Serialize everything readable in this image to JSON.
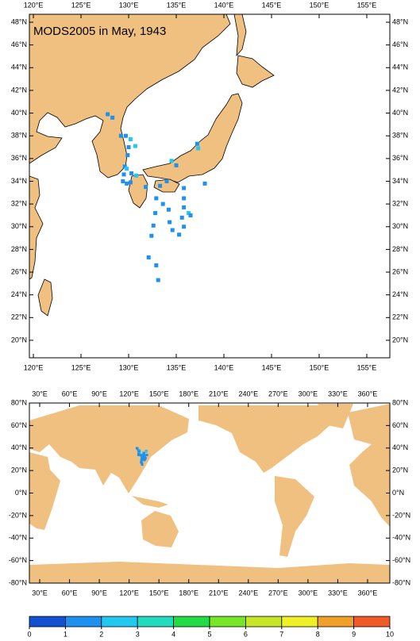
{
  "title": "MODS2005 in May, 1943",
  "maps": [
    {
      "xlim": [
        119.58,
        157.42
      ],
      "ylim": [
        18.46,
        48.7
      ],
      "xticks": [
        {
          "value": 120,
          "label": "120°E"
        },
        {
          "value": 125,
          "label": "125°E"
        },
        {
          "value": 130,
          "label": "130°E"
        },
        {
          "value": 135,
          "label": "135°E"
        },
        {
          "value": 140,
          "label": "140°E"
        },
        {
          "value": 145,
          "label": "145°E"
        },
        {
          "value": 150,
          "label": "150°E"
        },
        {
          "value": 155,
          "label": "155°E"
        }
      ],
      "yticks": [
        {
          "value": 20,
          "label": "20°N"
        },
        {
          "value": 22,
          "label": "22°N"
        },
        {
          "value": 24,
          "label": "24°N"
        },
        {
          "value": 26,
          "label": "26°N"
        },
        {
          "value": 28,
          "label": "28°N"
        },
        {
          "value": 30,
          "label": "30°N"
        },
        {
          "value": 32,
          "label": "32°N"
        },
        {
          "value": 34,
          "label": "34°N"
        },
        {
          "value": 36,
          "label": "36°N"
        },
        {
          "value": 38,
          "label": "38°N"
        },
        {
          "value": 40,
          "label": "40°N"
        },
        {
          "value": 42,
          "label": "42°N"
        },
        {
          "value": 44,
          "label": "44°N"
        },
        {
          "value": 46,
          "label": "46°N"
        },
        {
          "value": 48,
          "label": "48°N"
        }
      ]
    },
    {
      "xlim": [
        19.6,
        382.4
      ],
      "ylim": [
        -80,
        80
      ],
      "xticks": [
        {
          "value": 30,
          "label": "30°E"
        },
        {
          "value": 60,
          "label": "60°E"
        },
        {
          "value": 90,
          "label": "90°E"
        },
        {
          "value": 120,
          "label": "120°E"
        },
        {
          "value": 150,
          "label": "150°E"
        },
        {
          "value": 180,
          "label": "180°E"
        },
        {
          "value": 210,
          "label": "210°E"
        },
        {
          "value": 240,
          "label": "240°E"
        },
        {
          "value": 270,
          "label": "270°E"
        },
        {
          "value": 300,
          "label": "300°E"
        },
        {
          "value": 330,
          "label": "330°E"
        },
        {
          "value": 360,
          "label": "360°E"
        }
      ],
      "yticks": [
        {
          "value": -80,
          "label": "-80°N"
        },
        {
          "value": -60,
          "label": "-60°N"
        },
        {
          "value": -40,
          "label": "-40°N"
        },
        {
          "value": -20,
          "label": "-20°N"
        },
        {
          "value": 0,
          "label": "0°N"
        },
        {
          "value": 20,
          "label": "20°N"
        },
        {
          "value": 40,
          "label": "40°N"
        },
        {
          "value": 60,
          "label": "60°N"
        },
        {
          "value": 80,
          "label": "80°N"
        }
      ]
    }
  ],
  "cells": [
    [
      127.8,
      39.9,
      1
    ],
    [
      128.3,
      39.6,
      1
    ],
    [
      129.2,
      38.0,
      1
    ],
    [
      129.7,
      38.0,
      1
    ],
    [
      130.2,
      37.7,
      2
    ],
    [
      130.7,
      37.1,
      2
    ],
    [
      130.0,
      37.0,
      1
    ],
    [
      129.9,
      36.3,
      1
    ],
    [
      129.6,
      35.3,
      1
    ],
    [
      129.8,
      35.1,
      2
    ],
    [
      130.3,
      34.7,
      1
    ],
    [
      130.8,
      34.5,
      2
    ],
    [
      129.5,
      34.6,
      1
    ],
    [
      129.4,
      34.0,
      1
    ],
    [
      129.8,
      33.8,
      1
    ],
    [
      130.2,
      33.9,
      1
    ],
    [
      137.2,
      37.3,
      1
    ],
    [
      137.3,
      36.9,
      2
    ],
    [
      134.5,
      35.8,
      2
    ],
    [
      135.0,
      35.4,
      1
    ],
    [
      135.8,
      33.4,
      1
    ],
    [
      135.8,
      32.5,
      1
    ],
    [
      135.8,
      31.7,
      1
    ],
    [
      135.6,
      30.8,
      1
    ],
    [
      135.8,
      30.0,
      1
    ],
    [
      135.3,
      29.3,
      1
    ],
    [
      136.3,
      31.2,
      2
    ],
    [
      136.5,
      31.0,
      1
    ],
    [
      138.0,
      33.8,
      1
    ],
    [
      133.3,
      33.6,
      1
    ],
    [
      132.9,
      32.5,
      1
    ],
    [
      133.6,
      32.0,
      1
    ],
    [
      134.2,
      31.5,
      1
    ],
    [
      134.3,
      30.4,
      1
    ],
    [
      134.6,
      29.7,
      1
    ],
    [
      132.8,
      31.2,
      1
    ],
    [
      132.6,
      30.1,
      1
    ],
    [
      132.4,
      29.2,
      1
    ],
    [
      132.1,
      27.3,
      1
    ],
    [
      132.9,
      26.6,
      1
    ],
    [
      133.1,
      25.3,
      1
    ],
    [
      131.8,
      33.5,
      1
    ],
    [
      134.0,
      34.0,
      1
    ]
  ],
  "colorbar": {
    "ticks": [
      0,
      1,
      2,
      3,
      4,
      5,
      6,
      7,
      8,
      9,
      10
    ],
    "colors": [
      "#1450d2",
      "#1e90f0",
      "#22c8f0",
      "#22dcc0",
      "#22dc46",
      "#78e628",
      "#c8e628",
      "#f0f028",
      "#f0a028",
      "#f05a28"
    ]
  }
}
